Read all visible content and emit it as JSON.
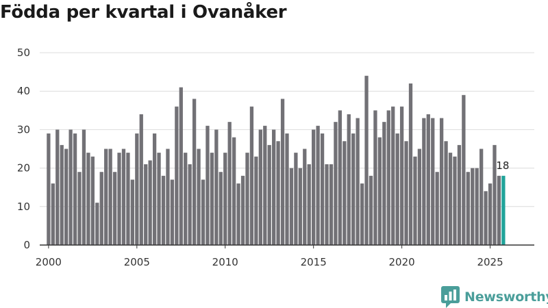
{
  "page": {
    "brand_name": "Newsworthy"
  },
  "colors": {
    "bar": "#727176",
    "highlight": "#20a39a",
    "brand": "#4a9e9a"
  },
  "icons": {
    "brand_logo": "newsworthy-logo-icon"
  },
  "chart_data": {
    "type": "bar",
    "title": "Födda per kvartal i Ovanåker",
    "xlabel": "",
    "ylabel": "",
    "ylim": [
      0,
      50
    ],
    "yticks": [
      0,
      10,
      20,
      30,
      40,
      50
    ],
    "xlim": [
      1999.5,
      2027.5
    ],
    "xticks": [
      2000,
      2005,
      2010,
      2015,
      2020,
      2025
    ],
    "grid": true,
    "legend": "none",
    "start_quarter": "2000 Q1",
    "highlight_last": true,
    "last_value_label": "18",
    "categories": [
      "2000 Q1",
      "2000 Q2",
      "2000 Q3",
      "2000 Q4",
      "2001 Q1",
      "2001 Q2",
      "2001 Q3",
      "2001 Q4",
      "2002 Q1",
      "2002 Q2",
      "2002 Q3",
      "2002 Q4",
      "2003 Q1",
      "2003 Q2",
      "2003 Q3",
      "2003 Q4",
      "2004 Q1",
      "2004 Q2",
      "2004 Q3",
      "2004 Q4",
      "2005 Q1",
      "2005 Q2",
      "2005 Q3",
      "2005 Q4",
      "2006 Q1",
      "2006 Q2",
      "2006 Q3",
      "2006 Q4",
      "2007 Q1",
      "2007 Q2",
      "2007 Q3",
      "2007 Q4",
      "2008 Q1",
      "2008 Q2",
      "2008 Q3",
      "2008 Q4",
      "2009 Q1",
      "2009 Q2",
      "2009 Q3",
      "2009 Q4",
      "2010 Q1",
      "2010 Q2",
      "2010 Q3",
      "2010 Q4",
      "2011 Q1",
      "2011 Q2",
      "2011 Q3",
      "2011 Q4",
      "2012 Q1",
      "2012 Q2",
      "2012 Q3",
      "2012 Q4",
      "2013 Q1",
      "2013 Q2",
      "2013 Q3",
      "2013 Q4",
      "2014 Q1",
      "2014 Q2",
      "2014 Q3",
      "2014 Q4",
      "2015 Q1",
      "2015 Q2",
      "2015 Q3",
      "2015 Q4",
      "2016 Q1",
      "2016 Q2",
      "2016 Q3",
      "2016 Q4",
      "2017 Q1",
      "2017 Q2",
      "2017 Q3",
      "2017 Q4",
      "2018 Q1",
      "2018 Q2",
      "2018 Q3",
      "2018 Q4",
      "2019 Q1",
      "2019 Q2",
      "2019 Q3",
      "2019 Q4",
      "2020 Q1",
      "2020 Q2",
      "2020 Q3",
      "2020 Q4",
      "2021 Q1",
      "2021 Q2",
      "2021 Q3",
      "2021 Q4",
      "2022 Q1",
      "2022 Q2",
      "2022 Q3",
      "2022 Q4",
      "2023 Q1",
      "2023 Q2",
      "2023 Q3",
      "2023 Q4",
      "2024 Q1",
      "2024 Q2",
      "2024 Q3",
      "2024 Q4",
      "2025 Q1",
      "2025 Q2",
      "2025 Q3",
      "2025 Q4"
    ],
    "values": [
      29,
      16,
      30,
      26,
      25,
      30,
      29,
      19,
      30,
      24,
      23,
      11,
      19,
      25,
      25,
      19,
      24,
      25,
      24,
      17,
      29,
      34,
      21,
      22,
      29,
      24,
      18,
      25,
      17,
      36,
      41,
      24,
      21,
      38,
      25,
      17,
      31,
      24,
      30,
      19,
      24,
      32,
      28,
      16,
      18,
      24,
      36,
      23,
      30,
      31,
      26,
      30,
      27,
      38,
      29,
      20,
      24,
      20,
      25,
      21,
      30,
      31,
      29,
      21,
      21,
      32,
      35,
      27,
      34,
      29,
      33,
      16,
      44,
      18,
      35,
      28,
      32,
      35,
      36,
      29,
      36,
      27,
      42,
      23,
      25,
      33,
      34,
      33,
      19,
      33,
      27,
      24,
      23,
      26,
      39,
      19,
      20,
      20,
      25,
      14,
      16,
      26,
      18,
      18
    ]
  }
}
